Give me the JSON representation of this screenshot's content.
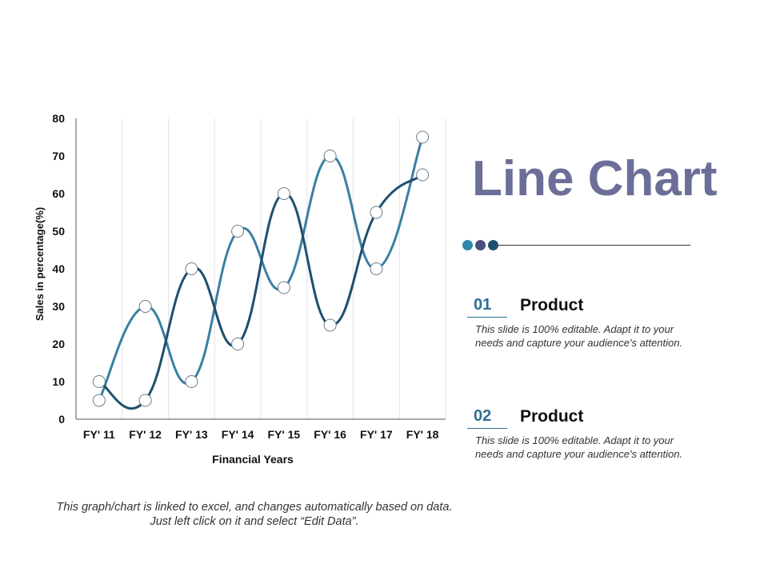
{
  "chart_data": {
    "type": "line",
    "categories": [
      "FY' 11",
      "FY' 12",
      "FY' 13",
      "FY' 14",
      "FY' 15",
      "FY' 16",
      "FY' 17",
      "FY' 18"
    ],
    "series": [
      {
        "values": [
          5,
          30,
          10,
          50,
          35,
          70,
          40,
          75
        ],
        "color": "#3a7fa3"
      },
      {
        "values": [
          10,
          5,
          40,
          20,
          60,
          25,
          55,
          65
        ],
        "color": "#1f4f6e"
      }
    ],
    "xlabel": "Financial Years",
    "ylabel": "Sales in percentage(%)",
    "ylim": [
      0,
      80
    ],
    "yticks": [
      0,
      10,
      20,
      30,
      40,
      50,
      60,
      70,
      80
    ],
    "grid": "vertical",
    "smooth": true,
    "legend": "none"
  },
  "title": "Line Chart",
  "accent_dots": [
    "#2e86a8",
    "#4a4f7e",
    "#1f4f6e"
  ],
  "items": [
    {
      "number": "01",
      "number_color": "#2e6f93",
      "heading": "Product",
      "text": "This slide is 100% editable. Adapt it to your needs and capture your audience's attention."
    },
    {
      "number": "02",
      "number_color": "#2e6f93",
      "heading": "Product",
      "text": "This slide is 100% editable. Adapt it to your needs and capture your audience's attention."
    }
  ],
  "footnote": "This graph/chart is linked to excel, and changes automatically based on data. Just left click on it and select “Edit Data”."
}
